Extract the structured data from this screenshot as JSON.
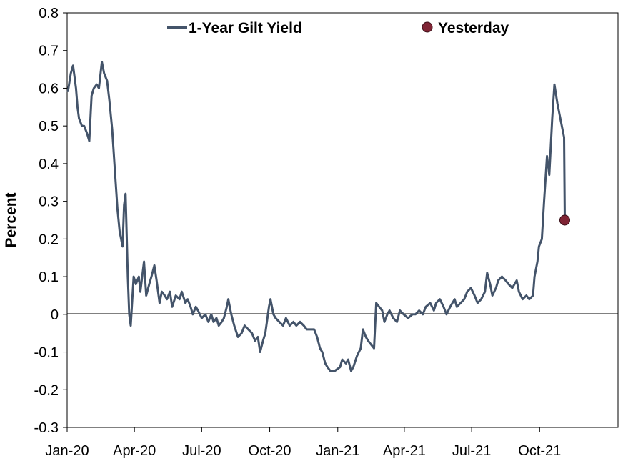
{
  "chart_data": {
    "type": "line",
    "xlabel": "",
    "ylabel": "Percent",
    "ylim": [
      -0.3,
      0.8
    ],
    "yticks": [
      "0.8",
      "0.7",
      "0.6",
      "0.5",
      "0.4",
      "0.3",
      "0.2",
      "0.1",
      "0",
      "-0.1",
      "-0.2",
      "-0.3"
    ],
    "xticks": [
      "Jan-20",
      "Apr-20",
      "Jul-20",
      "Oct-20",
      "Jan-21",
      "Apr-21",
      "Jul-21",
      "Oct-21"
    ],
    "xlim": [
      "2020-01-01",
      "2022-01-15"
    ],
    "legend_position": "top",
    "grid": false,
    "zero_line": true,
    "series": [
      {
        "name": "1-Year Gilt Yield",
        "color": "#44546a",
        "points": [
          [
            "2020-01-02",
            0.59
          ],
          [
            "2020-01-06",
            0.64
          ],
          [
            "2020-01-09",
            0.66
          ],
          [
            "2020-01-13",
            0.6
          ],
          [
            "2020-01-15",
            0.55
          ],
          [
            "2020-01-17",
            0.52
          ],
          [
            "2020-01-21",
            0.5
          ],
          [
            "2020-01-24",
            0.5
          ],
          [
            "2020-01-28",
            0.48
          ],
          [
            "2020-01-31",
            0.46
          ],
          [
            "2020-02-03",
            0.58
          ],
          [
            "2020-02-06",
            0.6
          ],
          [
            "2020-02-10",
            0.61
          ],
          [
            "2020-02-13",
            0.6
          ],
          [
            "2020-02-17",
            0.67
          ],
          [
            "2020-02-20",
            0.64
          ],
          [
            "2020-02-24",
            0.62
          ],
          [
            "2020-02-27",
            0.57
          ],
          [
            "2020-03-02",
            0.49
          ],
          [
            "2020-03-05",
            0.4
          ],
          [
            "2020-03-09",
            0.28
          ],
          [
            "2020-03-12",
            0.22
          ],
          [
            "2020-03-16",
            0.18
          ],
          [
            "2020-03-18",
            0.29
          ],
          [
            "2020-03-20",
            0.32
          ],
          [
            "2020-03-23",
            0.1
          ],
          [
            "2020-03-25",
            0.0
          ],
          [
            "2020-03-27",
            -0.03
          ],
          [
            "2020-03-31",
            0.1
          ],
          [
            "2020-04-03",
            0.08
          ],
          [
            "2020-04-07",
            0.1
          ],
          [
            "2020-04-09",
            0.06
          ],
          [
            "2020-04-14",
            0.14
          ],
          [
            "2020-04-17",
            0.05
          ],
          [
            "2020-04-21",
            0.08
          ],
          [
            "2020-04-24",
            0.1
          ],
          [
            "2020-04-28",
            0.13
          ],
          [
            "2020-05-01",
            0.09
          ],
          [
            "2020-05-05",
            0.03
          ],
          [
            "2020-05-08",
            0.06
          ],
          [
            "2020-05-12",
            0.05
          ],
          [
            "2020-05-15",
            0.04
          ],
          [
            "2020-05-19",
            0.06
          ],
          [
            "2020-05-22",
            0.02
          ],
          [
            "2020-05-27",
            0.05
          ],
          [
            "2020-06-01",
            0.04
          ],
          [
            "2020-06-04",
            0.06
          ],
          [
            "2020-06-09",
            0.03
          ],
          [
            "2020-06-12",
            0.04
          ],
          [
            "2020-06-16",
            0.02
          ],
          [
            "2020-06-19",
            0.0
          ],
          [
            "2020-06-23",
            0.02
          ],
          [
            "2020-06-26",
            0.01
          ],
          [
            "2020-07-01",
            -0.01
          ],
          [
            "2020-07-06",
            0.0
          ],
          [
            "2020-07-10",
            -0.02
          ],
          [
            "2020-07-14",
            0.0
          ],
          [
            "2020-07-17",
            -0.02
          ],
          [
            "2020-07-21",
            -0.01
          ],
          [
            "2020-07-24",
            -0.03
          ],
          [
            "2020-07-28",
            -0.02
          ],
          [
            "2020-07-31",
            -0.01
          ],
          [
            "2020-08-04",
            0.02
          ],
          [
            "2020-08-06",
            0.04
          ],
          [
            "2020-08-10",
            0.0
          ],
          [
            "2020-08-14",
            -0.03
          ],
          [
            "2020-08-19",
            -0.06
          ],
          [
            "2020-08-24",
            -0.05
          ],
          [
            "2020-08-28",
            -0.03
          ],
          [
            "2020-09-02",
            -0.04
          ],
          [
            "2020-09-07",
            -0.05
          ],
          [
            "2020-09-11",
            -0.07
          ],
          [
            "2020-09-15",
            -0.06
          ],
          [
            "2020-09-18",
            -0.1
          ],
          [
            "2020-09-22",
            -0.07
          ],
          [
            "2020-09-25",
            -0.05
          ],
          [
            "2020-09-30",
            0.02
          ],
          [
            "2020-10-02",
            0.04
          ],
          [
            "2020-10-06",
            0.0
          ],
          [
            "2020-10-09",
            -0.01
          ],
          [
            "2020-10-14",
            -0.02
          ],
          [
            "2020-10-19",
            -0.03
          ],
          [
            "2020-10-23",
            -0.01
          ],
          [
            "2020-10-28",
            -0.03
          ],
          [
            "2020-11-02",
            -0.02
          ],
          [
            "2020-11-06",
            -0.03
          ],
          [
            "2020-11-11",
            -0.02
          ],
          [
            "2020-11-16",
            -0.03
          ],
          [
            "2020-11-20",
            -0.04
          ],
          [
            "2020-11-25",
            -0.04
          ],
          [
            "2020-11-30",
            -0.04
          ],
          [
            "2020-12-04",
            -0.06
          ],
          [
            "2020-12-08",
            -0.09
          ],
          [
            "2020-12-11",
            -0.1
          ],
          [
            "2020-12-15",
            -0.13
          ],
          [
            "2020-12-18",
            -0.14
          ],
          [
            "2020-12-22",
            -0.15
          ],
          [
            "2020-12-28",
            -0.15
          ],
          [
            "2021-01-04",
            -0.14
          ],
          [
            "2021-01-07",
            -0.12
          ],
          [
            "2021-01-12",
            -0.13
          ],
          [
            "2021-01-15",
            -0.12
          ],
          [
            "2021-01-19",
            -0.15
          ],
          [
            "2021-01-22",
            -0.14
          ],
          [
            "2021-01-27",
            -0.11
          ],
          [
            "2021-02-01",
            -0.09
          ],
          [
            "2021-02-04",
            -0.04
          ],
          [
            "2021-02-08",
            -0.06
          ],
          [
            "2021-02-11",
            -0.07
          ],
          [
            "2021-02-15",
            -0.08
          ],
          [
            "2021-02-19",
            -0.09
          ],
          [
            "2021-02-22",
            0.03
          ],
          [
            "2021-02-26",
            0.02
          ],
          [
            "2021-03-02",
            0.01
          ],
          [
            "2021-03-05",
            -0.02
          ],
          [
            "2021-03-09",
            0.0
          ],
          [
            "2021-03-12",
            0.01
          ],
          [
            "2021-03-17",
            -0.01
          ],
          [
            "2021-03-22",
            -0.02
          ],
          [
            "2021-03-26",
            0.01
          ],
          [
            "2021-03-31",
            0.0
          ],
          [
            "2021-04-06",
            -0.01
          ],
          [
            "2021-04-12",
            0.0
          ],
          [
            "2021-04-16",
            0.0
          ],
          [
            "2021-04-21",
            0.01
          ],
          [
            "2021-04-26",
            0.0
          ],
          [
            "2021-04-30",
            0.02
          ],
          [
            "2021-05-06",
            0.03
          ],
          [
            "2021-05-11",
            0.01
          ],
          [
            "2021-05-14",
            0.03
          ],
          [
            "2021-05-19",
            0.04
          ],
          [
            "2021-05-24",
            0.02
          ],
          [
            "2021-05-28",
            0.0
          ],
          [
            "2021-06-02",
            0.02
          ],
          [
            "2021-06-08",
            0.04
          ],
          [
            "2021-06-11",
            0.02
          ],
          [
            "2021-06-16",
            0.03
          ],
          [
            "2021-06-21",
            0.04
          ],
          [
            "2021-06-25",
            0.06
          ],
          [
            "2021-06-30",
            0.07
          ],
          [
            "2021-07-05",
            0.05
          ],
          [
            "2021-07-09",
            0.03
          ],
          [
            "2021-07-14",
            0.04
          ],
          [
            "2021-07-19",
            0.06
          ],
          [
            "2021-07-22",
            0.11
          ],
          [
            "2021-07-26",
            0.08
          ],
          [
            "2021-07-29",
            0.05
          ],
          [
            "2021-08-03",
            0.07
          ],
          [
            "2021-08-06",
            0.09
          ],
          [
            "2021-08-11",
            0.1
          ],
          [
            "2021-08-16",
            0.09
          ],
          [
            "2021-08-20",
            0.08
          ],
          [
            "2021-08-25",
            0.07
          ],
          [
            "2021-08-31",
            0.09
          ],
          [
            "2021-09-03",
            0.06
          ],
          [
            "2021-09-08",
            0.04
          ],
          [
            "2021-09-13",
            0.05
          ],
          [
            "2021-09-17",
            0.04
          ],
          [
            "2021-09-22",
            0.05
          ],
          [
            "2021-09-24",
            0.1
          ],
          [
            "2021-09-28",
            0.14
          ],
          [
            "2021-09-30",
            0.18
          ],
          [
            "2021-10-04",
            0.2
          ],
          [
            "2021-10-07",
            0.3
          ],
          [
            "2021-10-11",
            0.42
          ],
          [
            "2021-10-14",
            0.37
          ],
          [
            "2021-10-18",
            0.52
          ],
          [
            "2021-10-21",
            0.61
          ],
          [
            "2021-10-25",
            0.56
          ],
          [
            "2021-10-28",
            0.53
          ],
          [
            "2021-11-01",
            0.49
          ],
          [
            "2021-11-03",
            0.47
          ],
          [
            "2021-11-04",
            0.25
          ]
        ]
      }
    ],
    "highlight": {
      "name": "Yesterday",
      "color": "#7f2434",
      "x": "2021-11-04",
      "y": 0.25
    }
  }
}
